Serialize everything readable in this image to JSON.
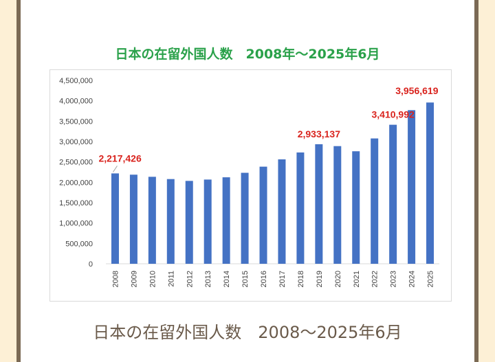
{
  "chart_data": {
    "type": "bar",
    "title": "日本の在留外国人数　2008年～2025年6月",
    "xlabel": "",
    "ylabel": "",
    "categories": [
      "2008",
      "2009",
      "2010",
      "2011",
      "2012",
      "2013",
      "2014",
      "2015",
      "2016",
      "2017",
      "2018",
      "2019",
      "2020",
      "2021",
      "2022",
      "2023",
      "2024",
      "2025"
    ],
    "values": [
      2217426,
      2186121,
      2134151,
      2078508,
      2033656,
      2066445,
      2121831,
      2232189,
      2382822,
      2561848,
      2731093,
      2933137,
      2887116,
      2760635,
      3075213,
      3410992,
      3768977,
      3956619
    ],
    "ylim": [
      0,
      4500000
    ],
    "yticks": [
      "0",
      "500,000",
      "1,000,000",
      "1,500,000",
      "2,000,000",
      "2,500,000",
      "3,000,000",
      "3,500,000",
      "4,000,000",
      "4,500,000"
    ],
    "data_labels": [
      {
        "category": "2008",
        "text": "2,217,426"
      },
      {
        "category": "2019",
        "text": "2,933,137"
      },
      {
        "category": "2023",
        "text": "3,410,992"
      },
      {
        "category": "2025",
        "text": "3,956,619"
      }
    ],
    "grid": false,
    "legend": "none",
    "bar_color": "#4472c4",
    "label_color": "#d9231d"
  },
  "caption": "日本の在留外国人数　2008～2025年6月",
  "colors": {
    "title": "#2aa14a",
    "caption": "#6a5a4a",
    "page_background": "#fdf0d6",
    "frame": "#7b6a55"
  }
}
